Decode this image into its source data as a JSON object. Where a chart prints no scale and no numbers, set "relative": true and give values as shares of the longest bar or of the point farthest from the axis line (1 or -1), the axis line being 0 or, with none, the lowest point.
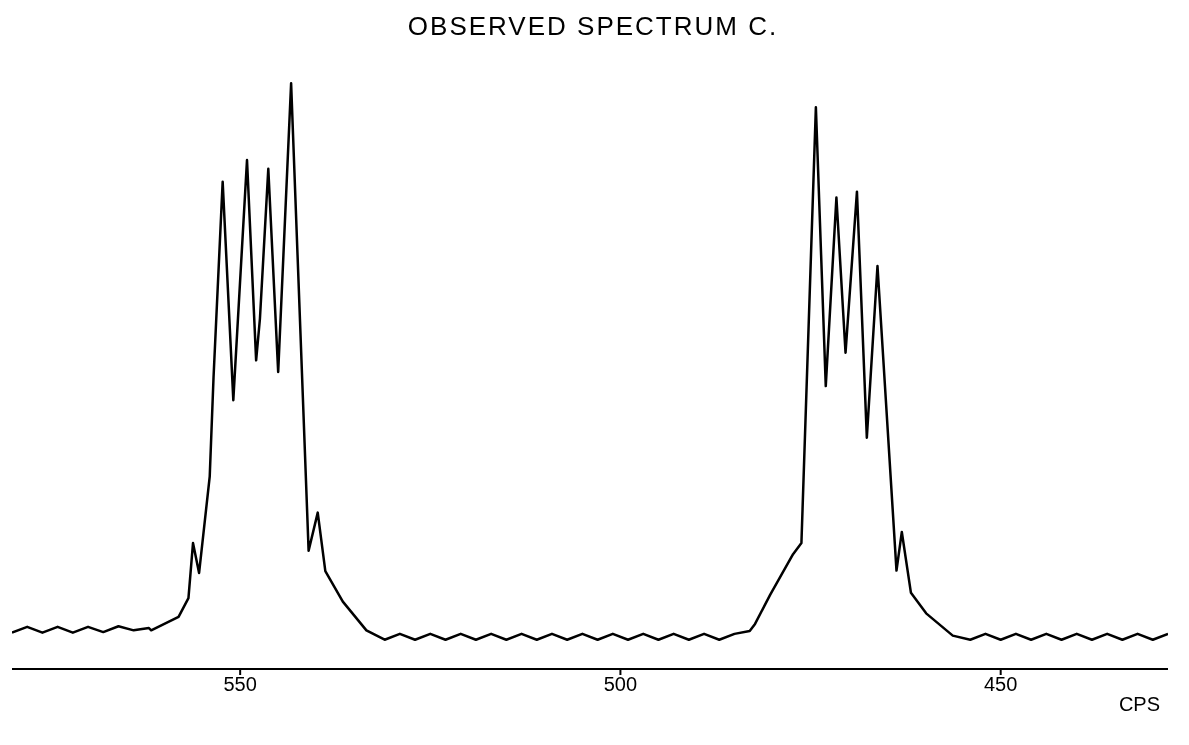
{
  "chart_data": {
    "type": "line",
    "title": "OBSERVED SPECTRUM C.",
    "xlabel": "CPS",
    "relative": true,
    "xlim": [
      580,
      428
    ],
    "xticks": [
      550,
      500,
      450
    ],
    "marker": "none",
    "line_style": "solid",
    "series": [
      {
        "color": "#000000",
        "x": [
          580,
          578,
          576,
          574,
          572,
          570,
          568,
          566,
          564,
          562,
          561.7,
          558.1,
          556.8,
          556.2,
          555.4,
          554.0,
          553.5,
          552.3,
          550.9,
          549.1,
          547.9,
          547.4,
          546.3,
          545.0,
          543.3,
          541.0,
          539.8,
          538.8,
          536.5,
          533.4,
          531,
          529,
          527,
          525,
          523,
          521,
          519,
          517,
          515,
          513,
          511,
          509,
          507,
          505,
          503,
          501,
          499,
          497,
          495,
          493,
          491,
          489,
          487,
          485,
          483,
          482.3,
          480.3,
          477.3,
          476.2,
          474.3,
          473.0,
          471.6,
          470.4,
          468.9,
          467.6,
          466.2,
          463.7,
          463.0,
          461.8,
          459.8,
          456.3,
          454,
          452,
          450,
          448,
          446,
          444,
          442,
          440,
          438,
          436,
          434,
          432,
          430,
          428
        ],
        "values": [
          0.062,
          0.072,
          0.062,
          0.072,
          0.062,
          0.072,
          0.063,
          0.073,
          0.066,
          0.07,
          0.066,
          0.089,
          0.121,
          0.215,
          0.164,
          0.329,
          0.498,
          0.832,
          0.459,
          0.869,
          0.527,
          0.598,
          0.854,
          0.507,
          1.0,
          0.202,
          0.267,
          0.167,
          0.115,
          0.066,
          0.05,
          0.06,
          0.05,
          0.06,
          0.05,
          0.06,
          0.05,
          0.06,
          0.05,
          0.06,
          0.05,
          0.06,
          0.05,
          0.06,
          0.05,
          0.06,
          0.05,
          0.06,
          0.05,
          0.06,
          0.05,
          0.06,
          0.05,
          0.06,
          0.065,
          0.077,
          0.127,
          0.196,
          0.215,
          0.959,
          0.483,
          0.805,
          0.54,
          0.815,
          0.395,
          0.688,
          0.168,
          0.234,
          0.13,
          0.095,
          0.057,
          0.05,
          0.06,
          0.05,
          0.06,
          0.05,
          0.06,
          0.05,
          0.06,
          0.05,
          0.06,
          0.05,
          0.06,
          0.05,
          0.06
        ]
      }
    ]
  }
}
